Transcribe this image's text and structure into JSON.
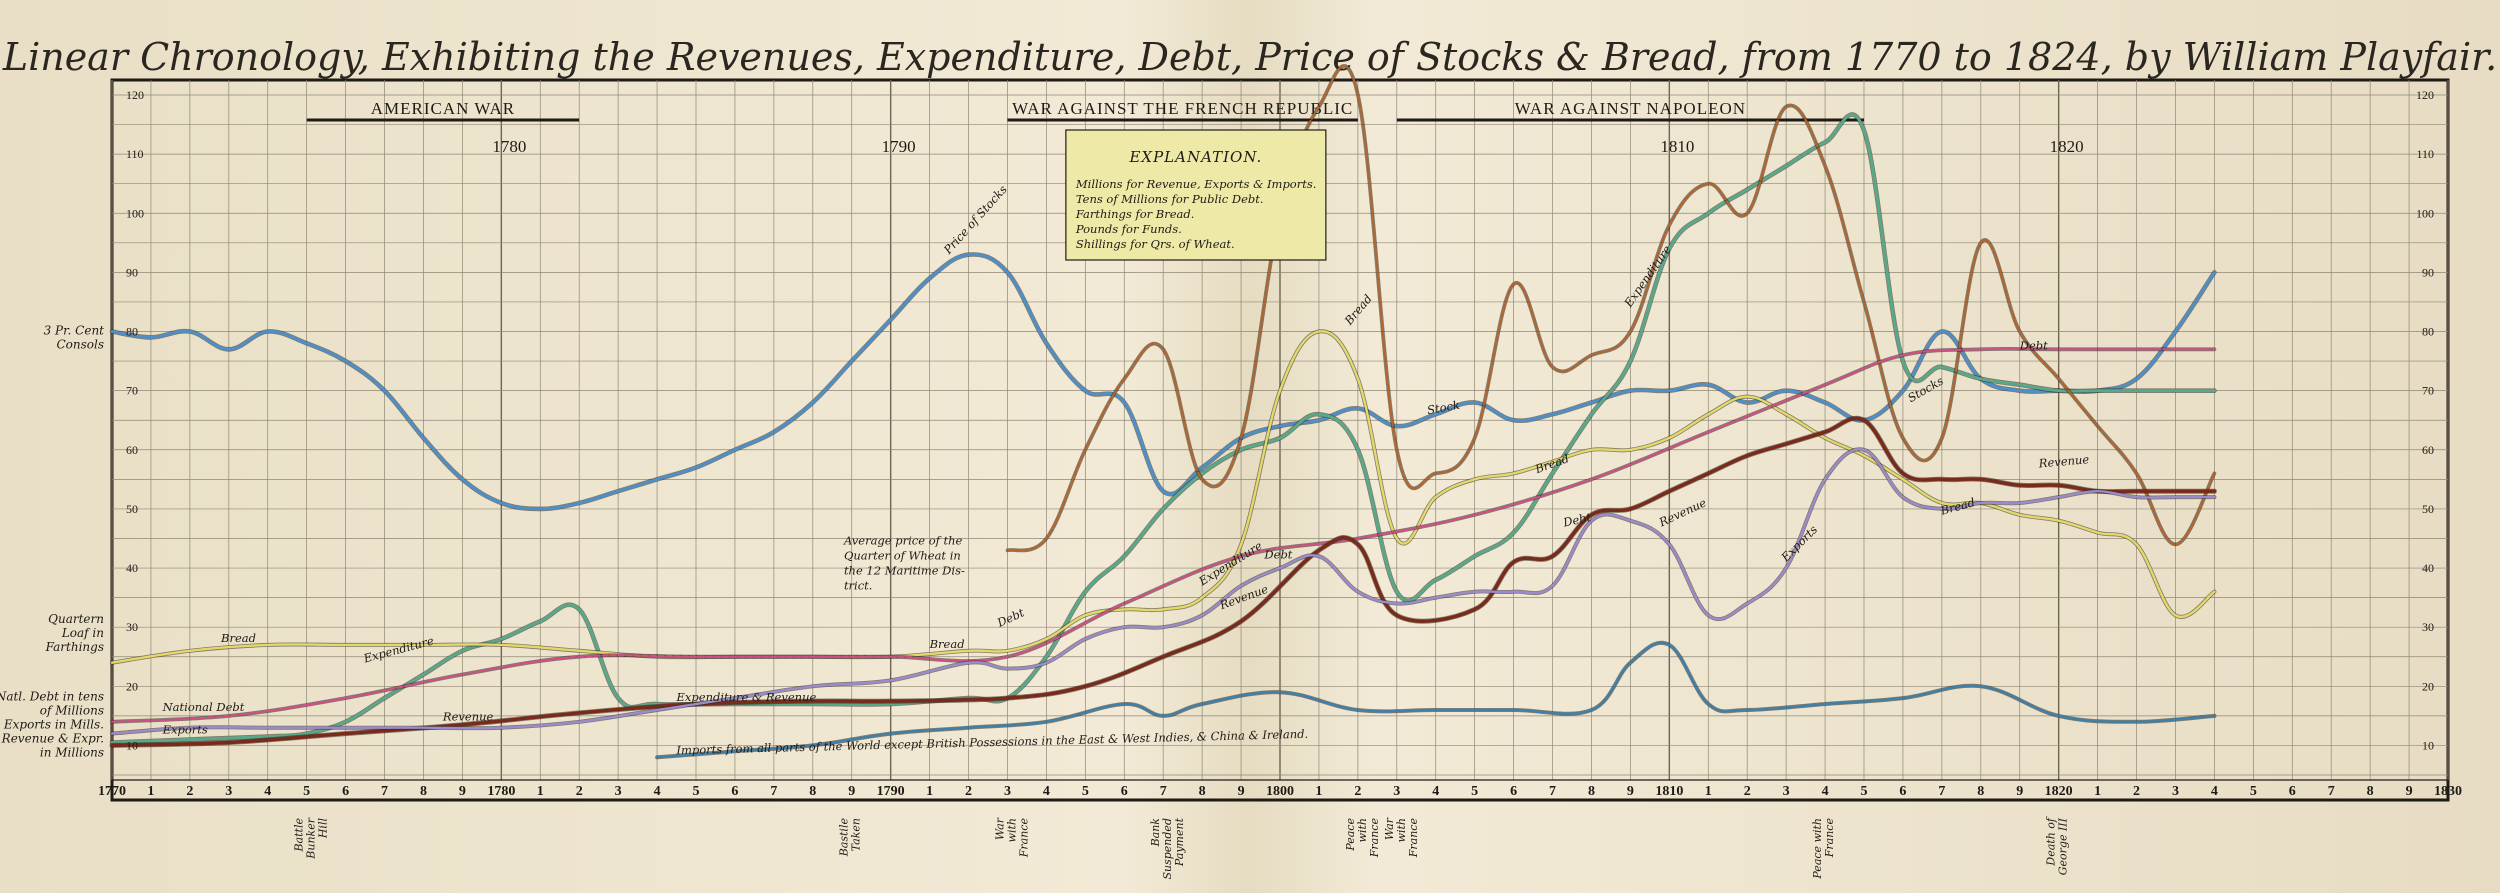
{
  "chart_data": {
    "type": "line",
    "title": "Linear Chronology, Exhibiting the Revenues, Expenditure, Debt, Price of Stocks & Bread, from 1770 to 1824, by William Playfair.",
    "xlim": [
      1770,
      1830
    ],
    "ylim": [
      5,
      120
    ],
    "x_ticks": [
      {
        "x": 1770,
        "label": "1770"
      },
      {
        "x": 1771,
        "label": "1"
      },
      {
        "x": 1772,
        "label": "2"
      },
      {
        "x": 1773,
        "label": "3"
      },
      {
        "x": 1774,
        "label": "4"
      },
      {
        "x": 1775,
        "label": "5"
      },
      {
        "x": 1776,
        "label": "6"
      },
      {
        "x": 1777,
        "label": "7"
      },
      {
        "x": 1778,
        "label": "8"
      },
      {
        "x": 1779,
        "label": "9"
      },
      {
        "x": 1780,
        "label": "1780"
      },
      {
        "x": 1781,
        "label": "1"
      },
      {
        "x": 1782,
        "label": "2"
      },
      {
        "x": 1783,
        "label": "3"
      },
      {
        "x": 1784,
        "label": "4"
      },
      {
        "x": 1785,
        "label": "5"
      },
      {
        "x": 1786,
        "label": "6"
      },
      {
        "x": 1787,
        "label": "7"
      },
      {
        "x": 1788,
        "label": "8"
      },
      {
        "x": 1789,
        "label": "9"
      },
      {
        "x": 1790,
        "label": "1790"
      },
      {
        "x": 1791,
        "label": "1"
      },
      {
        "x": 1792,
        "label": "2"
      },
      {
        "x": 1793,
        "label": "3"
      },
      {
        "x": 1794,
        "label": "4"
      },
      {
        "x": 1795,
        "label": "5"
      },
      {
        "x": 1796,
        "label": "6"
      },
      {
        "x": 1797,
        "label": "7"
      },
      {
        "x": 1798,
        "label": "8"
      },
      {
        "x": 1799,
        "label": "9"
      },
      {
        "x": 1800,
        "label": "1800"
      },
      {
        "x": 1801,
        "label": "1"
      },
      {
        "x": 1802,
        "label": "2"
      },
      {
        "x": 1803,
        "label": "3"
      },
      {
        "x": 1804,
        "label": "4"
      },
      {
        "x": 1805,
        "label": "5"
      },
      {
        "x": 1806,
        "label": "6"
      },
      {
        "x": 1807,
        "label": "7"
      },
      {
        "x": 1808,
        "label": "8"
      },
      {
        "x": 1809,
        "label": "9"
      },
      {
        "x": 1810,
        "label": "1810"
      },
      {
        "x": 1811,
        "label": "1"
      },
      {
        "x": 1812,
        "label": "2"
      },
      {
        "x": 1813,
        "label": "3"
      },
      {
        "x": 1814,
        "label": "4"
      },
      {
        "x": 1815,
        "label": "5"
      },
      {
        "x": 1816,
        "label": "6"
      },
      {
        "x": 1817,
        "label": "7"
      },
      {
        "x": 1818,
        "label": "8"
      },
      {
        "x": 1819,
        "label": "9"
      },
      {
        "x": 1820,
        "label": "1820"
      },
      {
        "x": 1821,
        "label": "1"
      },
      {
        "x": 1822,
        "label": "2"
      },
      {
        "x": 1823,
        "label": "3"
      },
      {
        "x": 1824,
        "label": "4"
      },
      {
        "x": 1825,
        "label": "5"
      },
      {
        "x": 1826,
        "label": "6"
      },
      {
        "x": 1827,
        "label": "7"
      },
      {
        "x": 1828,
        "label": "8"
      },
      {
        "x": 1829,
        "label": "9"
      },
      {
        "x": 1830,
        "label": "1830"
      }
    ],
    "y_ticks": [
      10,
      20,
      30,
      40,
      50,
      60,
      70,
      80,
      90,
      100,
      110,
      120
    ],
    "decade_labels": [
      {
        "x": 1780,
        "label": "1780"
      },
      {
        "x": 1790,
        "label": "1790"
      },
      {
        "x": 1800,
        "label": "1800"
      },
      {
        "x": 1810,
        "label": "1810"
      },
      {
        "x": 1820,
        "label": "1820"
      }
    ],
    "wars": [
      {
        "label": "AMERICAN WAR",
        "start": 1775,
        "end": 1782
      },
      {
        "label": "WAR AGAINST THE FRENCH REPUBLIC",
        "start": 1793,
        "end": 1802
      },
      {
        "label": "WAR AGAINST NAPOLEON",
        "start": 1803,
        "end": 1815
      }
    ],
    "left_axis_labels": [
      {
        "y": 79,
        "lines": [
          "3 Pr. Cent",
          "Consols"
        ]
      },
      {
        "y": 29,
        "lines": [
          "Quartern",
          "Loaf in",
          "Farthings"
        ]
      },
      {
        "y": 13.5,
        "lines": [
          "Natl. Debt in tens",
          "of Millions",
          "Exports in Mills.",
          "Revenue & Expr.",
          "in Millions"
        ]
      }
    ],
    "events": [
      {
        "x": 1775,
        "lines": [
          "Battle",
          "Bunker",
          "Hill"
        ]
      },
      {
        "x": 1789,
        "lines": [
          "Bastile",
          "Taken"
        ]
      },
      {
        "x": 1793,
        "lines": [
          "War",
          "with",
          "France"
        ]
      },
      {
        "x": 1797,
        "lines": [
          "Bank",
          "Suspended",
          "Payment"
        ]
      },
      {
        "x": 1802,
        "lines": [
          "Peace",
          "with",
          "France"
        ]
      },
      {
        "x": 1803,
        "lines": [
          "War",
          "with",
          "France"
        ]
      },
      {
        "x": 1814,
        "lines": [
          "Peace with",
          "France"
        ]
      },
      {
        "x": 1820,
        "lines": [
          "Death of",
          "George III"
        ]
      }
    ],
    "explanation": {
      "title": "EXPLANATION.",
      "lines": [
        "Millions for Revenue, Exports & Imports.",
        "Tens of Millions for Public Debt.",
        "Farthings for Bread.",
        "Pounds for Funds.",
        "Shillings for Qrs. of Wheat."
      ]
    },
    "annotations": [
      {
        "x": 1791.5,
        "y": 93,
        "text": "Price of Stocks",
        "rotate": -48
      },
      {
        "x": 1801.8,
        "y": 81,
        "text": "Bread",
        "rotate": -50
      },
      {
        "x": 1803.8,
        "y": 66,
        "text": "Stock",
        "rotate": -10
      },
      {
        "x": 1806.6,
        "y": 56,
        "text": "Bread",
        "rotate": -20
      },
      {
        "x": 1807.3,
        "y": 47,
        "text": "Debt",
        "rotate": -12
      },
      {
        "x": 1809.8,
        "y": 47,
        "text": "Revenue",
        "rotate": -25
      },
      {
        "x": 1813,
        "y": 41,
        "text": "Exports",
        "rotate": -45
      },
      {
        "x": 1816.2,
        "y": 68,
        "text": "Stocks",
        "rotate": -30
      },
      {
        "x": 1817,
        "y": 49,
        "text": "Bread",
        "rotate": -15
      },
      {
        "x": 1819.5,
        "y": 57,
        "text": "Revenue",
        "rotate": -5
      },
      {
        "x": 1819,
        "y": 77,
        "text": "Debt",
        "rotate": 0
      },
      {
        "x": 1809,
        "y": 84,
        "text": "Expenditure",
        "rotate": -55
      },
      {
        "x": 1798.5,
        "y": 33,
        "text": "Revenue",
        "rotate": -20
      },
      {
        "x": 1798,
        "y": 37,
        "text": "Expenditure",
        "rotate": -32
      },
      {
        "x": 1799.6,
        "y": 41.6,
        "text": "Debt",
        "rotate": 0
      },
      {
        "x": 1791,
        "y": 26.5,
        "text": "Bread",
        "rotate": 0
      },
      {
        "x": 1792.8,
        "y": 30,
        "text": "Debt",
        "rotate": -25
      },
      {
        "x": 1776.5,
        "y": 24,
        "text": "Expenditure",
        "rotate": -15
      },
      {
        "x": 1772.8,
        "y": 27.5,
        "text": "Bread",
        "rotate": 0
      },
      {
        "x": 1771.3,
        "y": 15.8,
        "text": "National Debt",
        "rotate": 0
      },
      {
        "x": 1771.3,
        "y": 12,
        "text": "Exports",
        "rotate": 0
      },
      {
        "x": 1778.5,
        "y": 14.2,
        "text": "Revenue",
        "rotate": 0
      },
      {
        "x": 1784.5,
        "y": 17.5,
        "text": "Expenditure & Revenue",
        "rotate": 0
      },
      {
        "x": 1784.5,
        "y": 8.5,
        "text": "Imports from all parts of the World except British Possessions in the East & West Indies, & China & Ireland.",
        "rotate": -1.5
      }
    ],
    "wheat_note": {
      "x": 1788.8,
      "y": 44,
      "lines": [
        "Average price of the",
        "Quarter of Wheat in",
        "the 12 Maritime Dis-",
        "trict."
      ]
    },
    "series": [
      {
        "name": "Price of Stocks",
        "color": "#4f8fc8",
        "width": 3,
        "x": [
          1770,
          1771,
          1772,
          1773,
          1774,
          1775,
          1776,
          1777,
          1778,
          1779,
          1780,
          1781,
          1782,
          1783,
          1784,
          1785,
          1786,
          1787,
          1788,
          1789,
          1790,
          1791,
          1792,
          1793,
          1794,
          1795,
          1796,
          1797,
          1798,
          1799,
          1800,
          1801,
          1802,
          1803,
          1804,
          1805,
          1806,
          1807,
          1808,
          1809,
          1810,
          1811,
          1812,
          1813,
          1814,
          1815,
          1816,
          1817,
          1818,
          1819,
          1820,
          1821,
          1822,
          1823,
          1824
        ],
        "y": [
          80,
          79,
          80,
          77,
          80,
          78,
          75,
          70,
          62,
          55,
          51,
          50,
          51,
          53,
          55,
          57,
          60,
          63,
          68,
          75,
          82,
          89,
          93,
          90,
          78,
          70,
          68,
          53,
          57,
          62,
          64,
          65,
          67,
          64,
          66,
          68,
          65,
          66,
          68,
          70,
          70,
          71,
          68,
          70,
          68,
          65,
          70,
          80,
          72,
          70,
          70,
          70,
          72,
          80,
          90
        ]
      },
      {
        "name": "Expenditure",
        "color": "#5aa88a",
        "width": 3,
        "x": [
          1770,
          1772,
          1774,
          1775,
          1776,
          1777,
          1778,
          1779,
          1780,
          1781,
          1782,
          1783,
          1784,
          1786,
          1788,
          1790,
          1792,
          1793,
          1794,
          1795,
          1796,
          1797,
          1798,
          1799,
          1800,
          1801,
          1802,
          1803,
          1804,
          1805,
          1806,
          1807,
          1808,
          1809,
          1810,
          1811,
          1812,
          1813,
          1814,
          1815,
          1816,
          1817,
          1818,
          1819,
          1820,
          1821,
          1822,
          1823,
          1824
        ],
        "y": [
          10.5,
          11,
          11.5,
          12,
          14,
          18,
          22,
          26,
          28,
          31,
          33,
          18,
          17,
          17,
          17,
          17,
          18,
          18,
          25,
          36,
          42,
          50,
          56,
          60,
          62,
          66,
          60,
          36,
          38,
          42,
          46,
          56,
          66,
          75,
          94,
          100,
          104,
          108,
          112,
          114,
          75,
          74,
          72,
          71,
          70,
          70,
          70,
          70,
          70
        ]
      },
      {
        "name": "Average price of the Quarter of Wheat",
        "color": "#b5642a",
        "width": 2.2,
        "dashed": true,
        "x": [
          1793,
          1794,
          1795,
          1796,
          1797,
          1798,
          1799,
          1800,
          1801,
          1802,
          1803,
          1804,
          1805,
          1806,
          1807,
          1808,
          1809,
          1810,
          1811,
          1812,
          1813,
          1814,
          1815,
          1816,
          1817,
          1818,
          1819,
          1820,
          1821,
          1822,
          1823,
          1824
        ],
        "y": [
          43,
          45,
          60,
          72,
          77,
          55,
          62,
          100,
          118,
          120,
          60,
          56,
          62,
          88,
          74,
          76,
          80,
          98,
          105,
          100,
          118,
          108,
          85,
          62,
          62,
          95,
          80,
          72,
          64,
          56,
          44,
          56
        ]
      },
      {
        "name": "Bread",
        "color": "#e3d86a",
        "width": 2.4,
        "x": [
          1770,
          1772,
          1774,
          1776,
          1778,
          1780,
          1782,
          1784,
          1786,
          1788,
          1790,
          1792,
          1793,
          1794,
          1795,
          1796,
          1797,
          1798,
          1799,
          1800,
          1801,
          1802,
          1803,
          1804,
          1805,
          1806,
          1807,
          1808,
          1809,
          1810,
          1811,
          1812,
          1813,
          1814,
          1815,
          1816,
          1817,
          1818,
          1819,
          1820,
          1821,
          1822,
          1823,
          1824
        ],
        "y": [
          24,
          26,
          27,
          27,
          27,
          27,
          26,
          25,
          25,
          25,
          25,
          26,
          26,
          28,
          32,
          33,
          33,
          35,
          44,
          70,
          80,
          72,
          45,
          52,
          55,
          56,
          58,
          60,
          60,
          62,
          66,
          69,
          66,
          62,
          59,
          55,
          51,
          51,
          49,
          48,
          46,
          44,
          32,
          36
        ]
      },
      {
        "name": "National Debt",
        "color": "#d64c8a",
        "width": 2.2,
        "dashed": true,
        "x": [
          1770,
          1773,
          1776,
          1779,
          1782,
          1785,
          1788,
          1790,
          1793,
          1796,
          1799,
          1802,
          1805,
          1808,
          1811,
          1814,
          1816,
          1818,
          1820,
          1822,
          1824
        ],
        "y": [
          14,
          15,
          18,
          22,
          25,
          25,
          25,
          25,
          25,
          34,
          42,
          45,
          49,
          55,
          63,
          71,
          76,
          77,
          77,
          77,
          77
        ]
      },
      {
        "name": "Revenue",
        "color": "#7a2a1a",
        "width": 3.4,
        "x": [
          1770,
          1773,
          1776,
          1779,
          1782,
          1785,
          1788,
          1790,
          1793,
          1795,
          1797,
          1799,
          1801,
          1802,
          1803,
          1805,
          1806,
          1807,
          1808,
          1809,
          1810,
          1811,
          1812,
          1813,
          1814,
          1815,
          1816,
          1817,
          1818,
          1819,
          1820,
          1821,
          1822,
          1823,
          1824
        ],
        "y": [
          10,
          10.5,
          12,
          13.5,
          15.5,
          17,
          17.5,
          17.5,
          18,
          20,
          25,
          31,
          43,
          44,
          32,
          33,
          41,
          42,
          49,
          50,
          53,
          56,
          59,
          61,
          63,
          65,
          56,
          55,
          55,
          54,
          54,
          53,
          53,
          53,
          53
        ]
      },
      {
        "name": "Exports",
        "color": "#9a8ccc",
        "width": 2.4,
        "x": [
          1770,
          1772,
          1774,
          1776,
          1778,
          1780,
          1782,
          1784,
          1786,
          1788,
          1790,
          1792,
          1793,
          1794,
          1795,
          1796,
          1797,
          1798,
          1799,
          1800,
          1801,
          1802,
          1803,
          1804,
          1805,
          1806,
          1807,
          1808,
          1809,
          1810,
          1811,
          1812,
          1813,
          1814,
          1815,
          1816,
          1817,
          1818,
          1819,
          1820,
          1821,
          1822,
          1823,
          1824
        ],
        "y": [
          12,
          13,
          13,
          13,
          13,
          13,
          14,
          16,
          18,
          20,
          21,
          24,
          23,
          24,
          28,
          30,
          30,
          32,
          37,
          40,
          42,
          36,
          34,
          35,
          36,
          36,
          37,
          48,
          48,
          44,
          32,
          34,
          40,
          55,
          60,
          52,
          50,
          51,
          51,
          52,
          53,
          52,
          52,
          52
        ]
      },
      {
        "name": "Imports",
        "color": "#3f7fa8",
        "width": 2.4,
        "x": [
          1784,
          1786,
          1788,
          1790,
          1792,
          1794,
          1796,
          1797,
          1798,
          1800,
          1802,
          1804,
          1806,
          1808,
          1809,
          1810,
          1811,
          1812,
          1814,
          1816,
          1818,
          1820,
          1822,
          1824
        ],
        "y": [
          8,
          9,
          10,
          12,
          13,
          14,
          17,
          15,
          17,
          19,
          16,
          16,
          16,
          16,
          24,
          27,
          17,
          16,
          17,
          18,
          20,
          15,
          14,
          15
        ]
      }
    ]
  }
}
